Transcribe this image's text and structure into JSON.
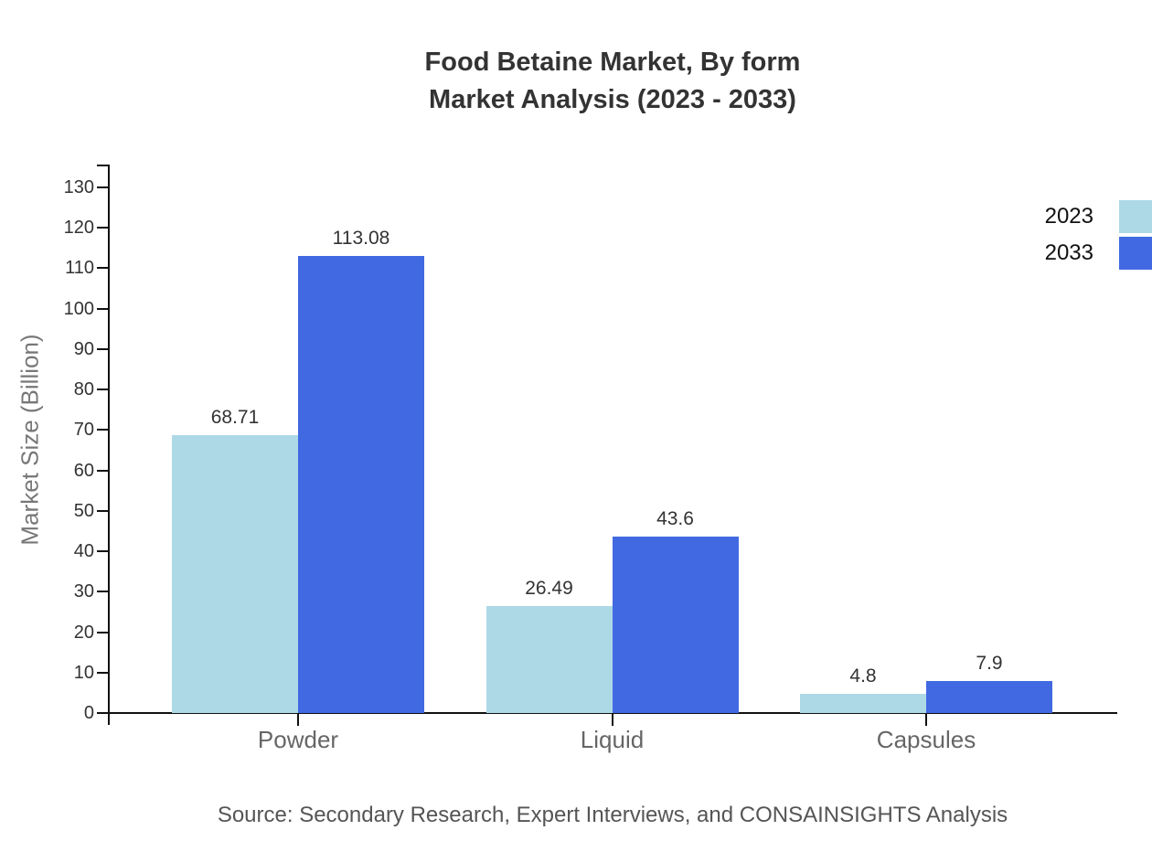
{
  "title": {
    "line1": "Food Betaine Market, By form",
    "line2": "Market Analysis (2023 - 2033)"
  },
  "source_note": "Source: Secondary Research, Expert Interviews, and CONSAINSIGHTS Analysis",
  "legend": {
    "items": [
      {
        "label": "2023",
        "color": "#ADD9E6"
      },
      {
        "label": "2033",
        "color": "#4169E1"
      }
    ]
  },
  "colors": {
    "series_2023": "#ADD9E6",
    "series_2033": "#4169E1",
    "axis": "#111111",
    "title_text": "#333333",
    "tick_text": "#333333",
    "value_text": "#333333",
    "category_text": "#666666",
    "axis_label_text": "#777777",
    "legend_text": "#111111",
    "source_text": "#555555",
    "background": "#ffffff"
  },
  "chart_data": {
    "type": "bar",
    "title": "Food Betaine Market, By form — Market Analysis (2023 - 2033)",
    "categories": [
      "Powder",
      "Liquid",
      "Capsules"
    ],
    "series": [
      {
        "name": "2023",
        "color": "#ADD9E6",
        "values": [
          68.71,
          26.49,
          4.8
        ]
      },
      {
        "name": "2033",
        "color": "#4169E1",
        "values": [
          113.08,
          43.6,
          7.9
        ]
      }
    ],
    "xlabel": "",
    "ylabel": "Market Size (Billion)",
    "ylim": [
      0,
      130
    ],
    "ytick_step": 10,
    "yticks": [
      0,
      10,
      20,
      30,
      40,
      50,
      60,
      70,
      80,
      90,
      100,
      110,
      120,
      130
    ],
    "grid": false,
    "legend_position": "top-right",
    "value_labels_shown": true
  }
}
